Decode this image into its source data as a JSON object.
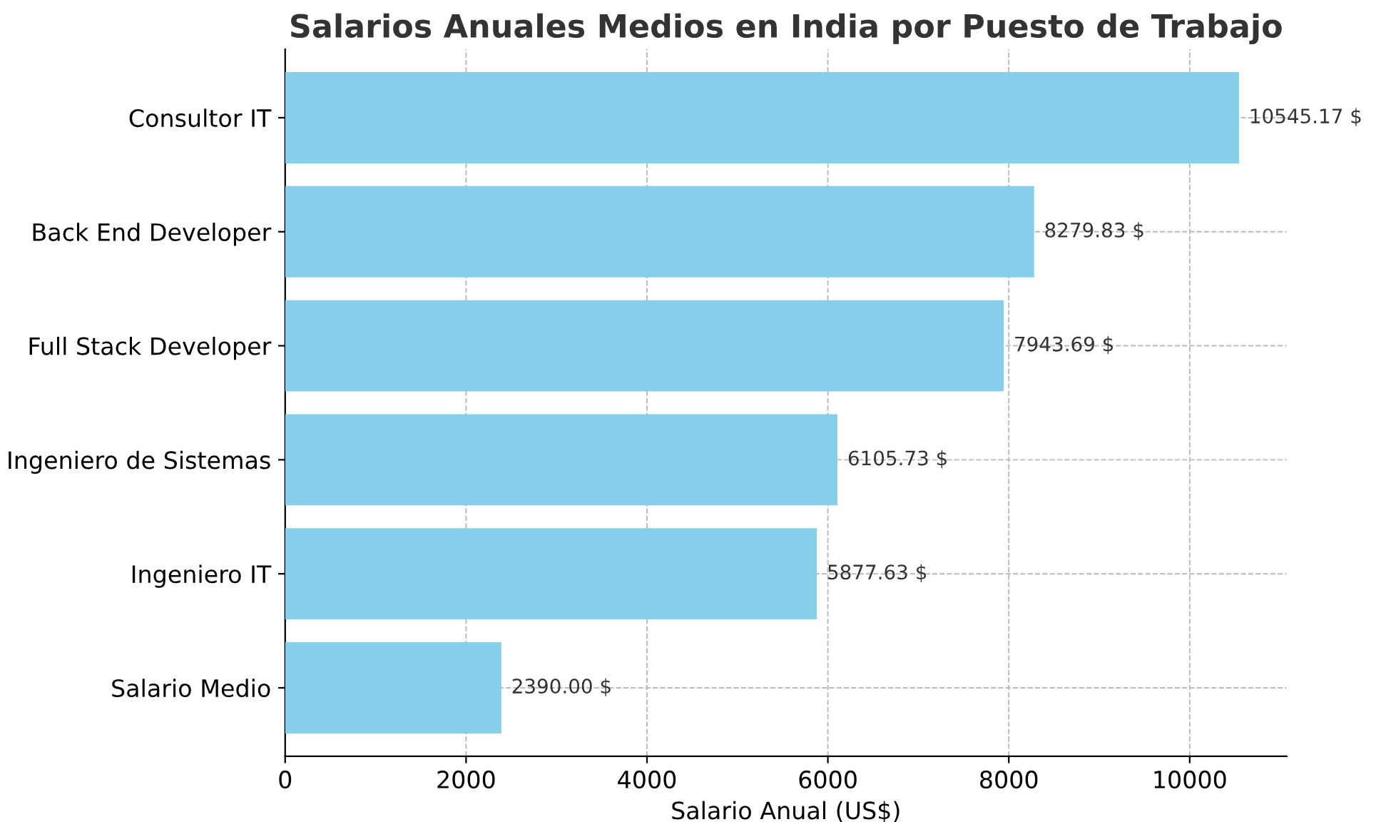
{
  "chart_data": {
    "type": "bar",
    "orientation": "horizontal",
    "title": "Salarios Anuales Medios en India por Puesto de Trabajo",
    "xlabel": "Salario Anual (US$)",
    "categories": [
      "Consultor IT",
      "Back End Developer",
      "Full Stack Developer",
      "Ingeniero de Sistemas",
      "Ingeniero IT",
      "Salario Medio"
    ],
    "values": [
      10545.17,
      8279.83,
      7943.69,
      6105.73,
      5877.63,
      2390.0
    ],
    "value_labels": [
      "10545.17 $",
      "8279.83 $",
      "7943.69 $",
      "6105.73 $",
      "5877.63 $",
      "2390.00 $"
    ],
    "color": "#87ceeb",
    "xlim": [
      0,
      11072
    ],
    "xticks": [
      0,
      2000,
      4000,
      6000,
      8000,
      10000
    ],
    "grid": true
  }
}
